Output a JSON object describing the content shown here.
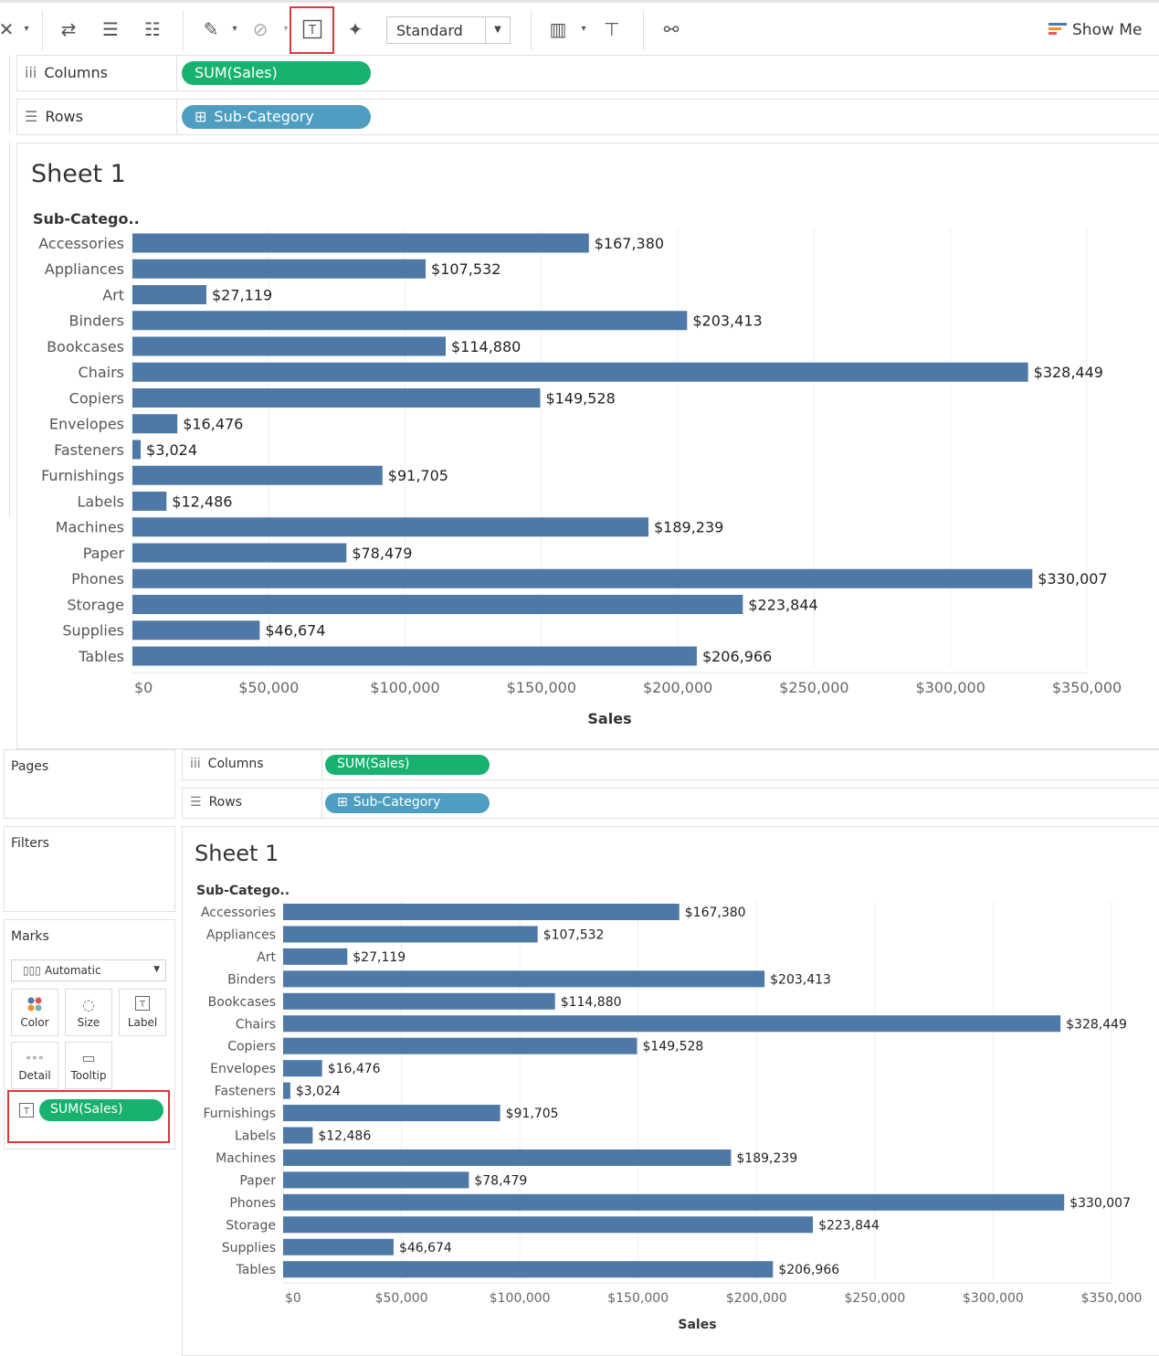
{
  "toolbar": {
    "view_mode": "Standard",
    "show_me": "Show Me"
  },
  "top": {
    "columns_label": "Columns",
    "rows_label": "Rows",
    "columns_pill": "SUM(Sales)",
    "rows_pill": "Sub-Category",
    "sheet_title": "Sheet 1",
    "row_header": "Sub-Catego.."
  },
  "bottom": {
    "pages_title": "Pages",
    "filters_title": "Filters",
    "marks_title": "Marks",
    "marks_type": "Automatic",
    "mark_cards": [
      "Color",
      "Size",
      "Label",
      "Detail",
      "Tooltip"
    ],
    "label_pill": "SUM(Sales)",
    "columns_label": "Columns",
    "rows_label": "Rows",
    "columns_pill": "SUM(Sales)",
    "rows_pill": "Sub-Category",
    "sheet_title": "Sheet 1",
    "row_header": "Sub-Catego.."
  },
  "colors": {
    "bar": "#4e79a7",
    "pill_measure": "#17b26e",
    "pill_dimension": "#4d9ec1",
    "highlight": "#d9373b"
  },
  "chart_data": [
    {
      "type": "bar",
      "orientation": "horizontal",
      "categories": [
        "Accessories",
        "Appliances",
        "Art",
        "Binders",
        "Bookcases",
        "Chairs",
        "Copiers",
        "Envelopes",
        "Fasteners",
        "Furnishings",
        "Labels",
        "Machines",
        "Paper",
        "Phones",
        "Storage",
        "Supplies",
        "Tables"
      ],
      "values": [
        167380,
        107532,
        27119,
        203413,
        114880,
        328449,
        149528,
        16476,
        3024,
        91705,
        12486,
        189239,
        78479,
        330007,
        223844,
        46674,
        206966
      ],
      "labels": [
        "$167,380",
        "$107,532",
        "$27,119",
        "$203,413",
        "$114,880",
        "$328,449",
        "$149,528",
        "$16,476",
        "$3,024",
        "$91,705",
        "$12,486",
        "$189,239",
        "$78,479",
        "$330,007",
        "$223,844",
        "$46,674",
        "$206,966"
      ],
      "xticks": [
        "$0",
        "$50,000",
        "$100,000",
        "$150,000",
        "$200,000",
        "$250,000",
        "$300,000",
        "$350,000"
      ],
      "xlabel": "Sales",
      "xlim": [
        0,
        350000
      ],
      "grid": true
    },
    {
      "type": "bar",
      "orientation": "horizontal",
      "categories": [
        "Accessories",
        "Appliances",
        "Art",
        "Binders",
        "Bookcases",
        "Chairs",
        "Copiers",
        "Envelopes",
        "Fasteners",
        "Furnishings",
        "Labels",
        "Machines",
        "Paper",
        "Phones",
        "Storage",
        "Supplies",
        "Tables"
      ],
      "values": [
        167380,
        107532,
        27119,
        203413,
        114880,
        328449,
        149528,
        16476,
        3024,
        91705,
        12486,
        189239,
        78479,
        330007,
        223844,
        46674,
        206966
      ],
      "labels": [
        "$167,380",
        "$107,532",
        "$27,119",
        "$203,413",
        "$114,880",
        "$328,449",
        "$149,528",
        "$16,476",
        "$3,024",
        "$91,705",
        "$12,486",
        "$189,239",
        "$78,479",
        "$330,007",
        "$223,844",
        "$46,674",
        "$206,966"
      ],
      "xticks": [
        "$0",
        "$50,000",
        "$100,000",
        "$150,000",
        "$200,000",
        "$250,000",
        "$300,000",
        "$350,000"
      ],
      "xlabel": "Sales",
      "xlim": [
        0,
        350000
      ],
      "grid": true
    }
  ]
}
